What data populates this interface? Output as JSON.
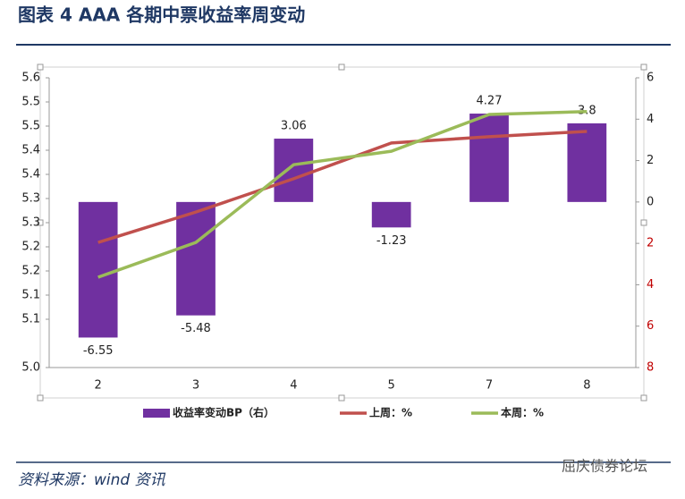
{
  "header": {
    "title": "图表 4 AAA 各期中票收益率周变动"
  },
  "chart_data": {
    "type": "bar",
    "categories": [
      "2",
      "3",
      "4",
      "5",
      "7",
      "8"
    ],
    "series": [
      {
        "name": "收益率变动BP（右）",
        "type": "bar",
        "axis": "y2",
        "color": "#7030a0",
        "values": [
          -6.55,
          -5.48,
          3.06,
          -1.23,
          4.27,
          3.8
        ]
      },
      {
        "name": "上周：%",
        "type": "line",
        "color": "#c0504d",
        "values": [
          5.259,
          5.322,
          5.391,
          5.465,
          5.478,
          5.489
        ]
      },
      {
        "name": "本周：%",
        "type": "line",
        "color": "#9bbb59",
        "values": [
          5.187,
          5.259,
          5.42,
          5.448,
          5.524,
          5.53
        ]
      }
    ],
    "ylim": [
      5.0,
      5.6
    ],
    "yticks": [
      5.6,
      {
        "value": 5.55,
        "label": "5.5"
      },
      5.5,
      {
        "value": 5.45,
        "label": "5.4"
      },
      5.4,
      {
        "value": 5.35,
        "label": "5.3"
      },
      5.3,
      {
        "value": 5.25,
        "label": "5.2"
      },
      5.2,
      {
        "value": 5.15,
        "label": "5.1"
      },
      5.1,
      {
        "value": 5.0,
        "label": "5.0"
      }
    ],
    "y2lim": [
      -8,
      6
    ],
    "y2ticks": [
      6,
      4,
      2,
      0,
      {
        "value": -2,
        "label": "2"
      },
      {
        "value": -4,
        "label": "4"
      },
      {
        "value": -6,
        "label": "6"
      },
      {
        "value": -8,
        "label": "8"
      }
    ],
    "negative_tick_color": "#c00000",
    "legend": "bottom"
  },
  "footer": {
    "source": "资料来源：wind 资讯",
    "watermark": "屈庆债券论坛"
  }
}
